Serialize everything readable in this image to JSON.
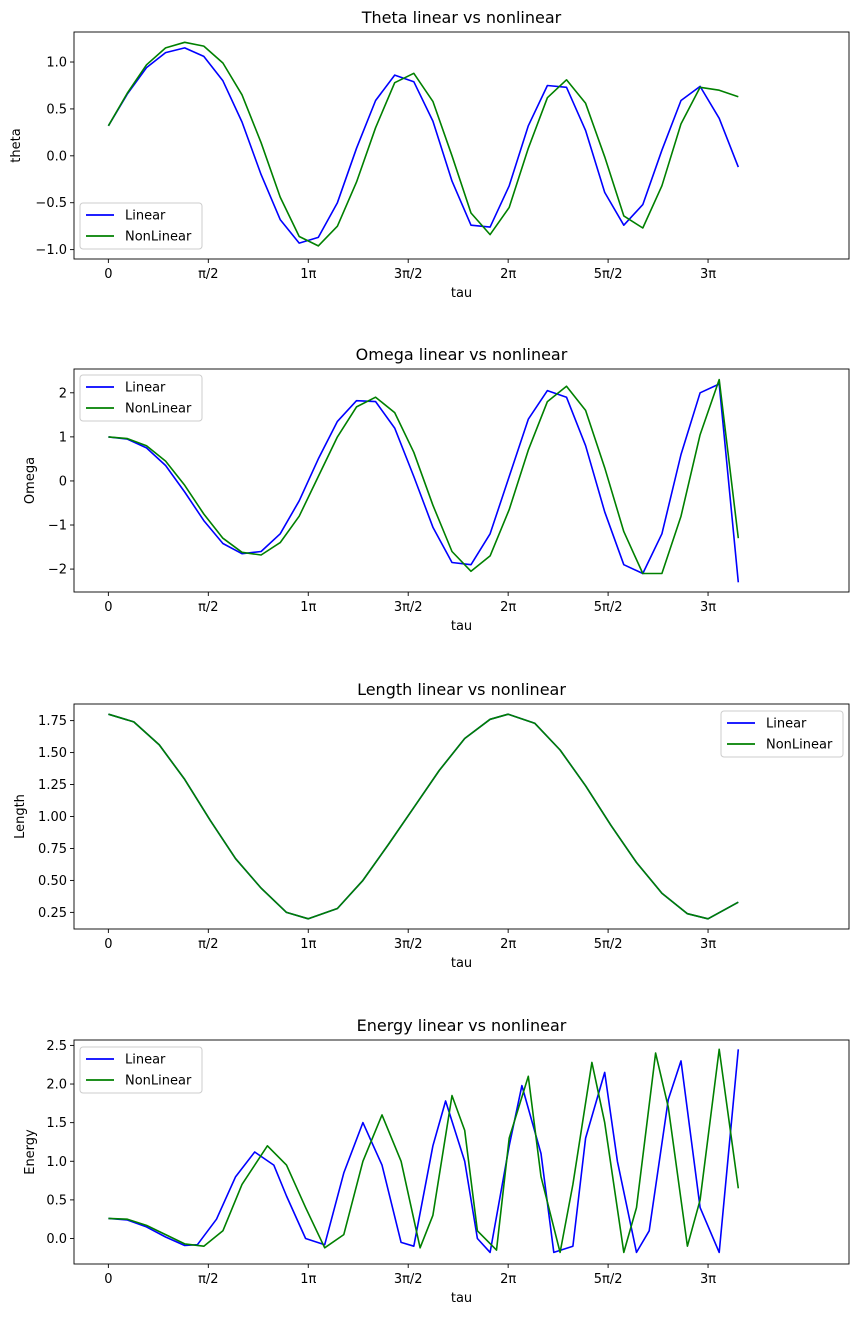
{
  "colors": {
    "linear": "#0000ff",
    "nonlinear": "#008000"
  },
  "chart_data": [
    {
      "type": "line",
      "title": "Theta linear vs nonlinear",
      "xlabel": "tau",
      "ylabel": "theta",
      "xlim": [
        -0.54,
        11.64
      ],
      "ylim": [
        -1.1,
        1.32
      ],
      "xticks": [
        0,
        1.5708,
        3.1416,
        4.7124,
        6.2832,
        7.854,
        9.4248
      ],
      "xticklabels": [
        "0",
        "π/2",
        "1π",
        "3π/2",
        "2π",
        "5π/2",
        "3π"
      ],
      "yticks": [
        -1.0,
        -0.5,
        0.0,
        0.5,
        1.0
      ],
      "yticklabels": [
        "−1.0",
        "−0.5",
        "0.0",
        "0.5",
        "1.0"
      ],
      "legend": "lower-left",
      "grid": false,
      "series": [
        {
          "name": "Linear",
          "color": "#0000ff",
          "x": [
            0,
            0.3,
            0.6,
            0.9,
            1.2,
            1.5,
            1.8,
            2.1,
            2.4,
            2.7,
            3.0,
            3.3,
            3.6,
            3.9,
            4.2,
            4.5,
            4.8,
            5.1,
            5.4,
            5.7,
            6.0,
            6.3,
            6.6,
            6.9,
            7.2,
            7.5,
            7.8,
            8.1,
            8.4,
            8.7,
            9.0,
            9.3,
            9.6,
            9.9
          ],
          "y": [
            0.32,
            0.66,
            0.94,
            1.1,
            1.15,
            1.06,
            0.8,
            0.36,
            -0.2,
            -0.68,
            -0.93,
            -0.87,
            -0.5,
            0.08,
            0.59,
            0.86,
            0.79,
            0.37,
            -0.27,
            -0.74,
            -0.76,
            -0.32,
            0.32,
            0.75,
            0.73,
            0.27,
            -0.39,
            -0.74,
            -0.52,
            0.06,
            0.59,
            0.74,
            0.4,
            -0.12
          ]
        },
        {
          "name": "NonLinear",
          "color": "#008000",
          "x": [
            0,
            0.3,
            0.6,
            0.9,
            1.2,
            1.5,
            1.8,
            2.1,
            2.4,
            2.7,
            3.0,
            3.3,
            3.6,
            3.9,
            4.2,
            4.5,
            4.8,
            5.1,
            5.4,
            5.7,
            6.0,
            6.3,
            6.6,
            6.9,
            7.2,
            7.5,
            7.8,
            8.1,
            8.4,
            8.7,
            9.0,
            9.3,
            9.6,
            9.9
          ],
          "y": [
            0.32,
            0.67,
            0.97,
            1.15,
            1.21,
            1.17,
            0.99,
            0.65,
            0.14,
            -0.44,
            -0.86,
            -0.96,
            -0.75,
            -0.28,
            0.3,
            0.78,
            0.88,
            0.58,
            0.0,
            -0.61,
            -0.84,
            -0.55,
            0.08,
            0.62,
            0.81,
            0.56,
            -0.01,
            -0.64,
            -0.77,
            -0.32,
            0.34,
            0.73,
            0.7,
            0.63
          ]
        }
      ]
    },
    {
      "type": "line",
      "title": "Omega linear vs nonlinear",
      "xlabel": "tau",
      "ylabel": "Omega",
      "xlim": [
        -0.54,
        11.64
      ],
      "ylim": [
        -2.52,
        2.54
      ],
      "xticks": [
        0,
        1.5708,
        3.1416,
        4.7124,
        6.2832,
        7.854,
        9.4248
      ],
      "xticklabels": [
        "0",
        "π/2",
        "1π",
        "3π/2",
        "2π",
        "5π/2",
        "3π"
      ],
      "yticks": [
        -2,
        -1,
        0,
        1,
        2
      ],
      "yticklabels": [
        "−2",
        "−1",
        "0",
        "1",
        "2"
      ],
      "legend": "upper-left",
      "grid": false,
      "series": [
        {
          "name": "Linear",
          "color": "#0000ff",
          "x": [
            0,
            0.3,
            0.6,
            0.9,
            1.2,
            1.5,
            1.8,
            2.1,
            2.4,
            2.7,
            3.0,
            3.3,
            3.6,
            3.9,
            4.2,
            4.5,
            4.8,
            5.1,
            5.4,
            5.7,
            6.0,
            6.3,
            6.6,
            6.9,
            7.2,
            7.5,
            7.8,
            8.1,
            8.4,
            8.7,
            9.0,
            9.3,
            9.6,
            9.9
          ],
          "y": [
            1.0,
            0.95,
            0.75,
            0.35,
            -0.25,
            -0.9,
            -1.42,
            -1.65,
            -1.6,
            -1.2,
            -0.45,
            0.5,
            1.35,
            1.82,
            1.8,
            1.2,
            0.1,
            -1.05,
            -1.85,
            -1.9,
            -1.2,
            0.1,
            1.4,
            2.05,
            1.9,
            0.8,
            -0.7,
            -1.9,
            -2.1,
            -1.2,
            0.6,
            2.0,
            2.2,
            -2.3
          ]
        },
        {
          "name": "NonLinear",
          "color": "#008000",
          "x": [
            0,
            0.3,
            0.6,
            0.9,
            1.2,
            1.5,
            1.8,
            2.1,
            2.4,
            2.7,
            3.0,
            3.3,
            3.6,
            3.9,
            4.2,
            4.5,
            4.8,
            5.1,
            5.4,
            5.7,
            6.0,
            6.3,
            6.6,
            6.9,
            7.2,
            7.5,
            7.8,
            8.1,
            8.4,
            8.7,
            9.0,
            9.3,
            9.6,
            9.9
          ],
          "y": [
            1.0,
            0.96,
            0.8,
            0.45,
            -0.1,
            -0.75,
            -1.3,
            -1.62,
            -1.68,
            -1.4,
            -0.8,
            0.1,
            1.0,
            1.68,
            1.9,
            1.55,
            0.65,
            -0.55,
            -1.6,
            -2.05,
            -1.7,
            -0.65,
            0.7,
            1.8,
            2.15,
            1.6,
            0.3,
            -1.15,
            -2.1,
            -2.1,
            -0.8,
            1.05,
            2.3,
            -1.3
          ]
        }
      ]
    },
    {
      "type": "line",
      "title": "Length linear vs nonlinear",
      "xlabel": "tau",
      "ylabel": "Length",
      "xlim": [
        -0.54,
        11.64
      ],
      "ylim": [
        0.12,
        1.88
      ],
      "xticks": [
        0,
        1.5708,
        3.1416,
        4.7124,
        6.2832,
        7.854,
        9.4248
      ],
      "xticklabels": [
        "0",
        "π/2",
        "1π",
        "3π/2",
        "2π",
        "5π/2",
        "3π"
      ],
      "yticks": [
        0.25,
        0.5,
        0.75,
        1.0,
        1.25,
        1.5,
        1.75
      ],
      "yticklabels": [
        "0.25",
        "0.50",
        "0.75",
        "1.00",
        "1.25",
        "1.50",
        "1.75"
      ],
      "legend": "upper-right",
      "grid": false,
      "series": [
        {
          "name": "Linear",
          "color": "#0000ff",
          "x": [
            0,
            0.4,
            0.8,
            1.2,
            1.6,
            2.0,
            2.4,
            2.8,
            3.1416,
            3.6,
            4.0,
            4.4,
            4.8,
            5.2,
            5.6,
            6.0,
            6.2832,
            6.7,
            7.1,
            7.5,
            7.9,
            8.3,
            8.7,
            9.1,
            9.4248,
            9.9
          ],
          "y": [
            1.8,
            1.74,
            1.56,
            1.29,
            0.97,
            0.67,
            0.44,
            0.25,
            0.2,
            0.28,
            0.5,
            0.78,
            1.07,
            1.36,
            1.61,
            1.76,
            1.8,
            1.73,
            1.52,
            1.24,
            0.93,
            0.64,
            0.4,
            0.24,
            0.2,
            0.33
          ]
        },
        {
          "name": "NonLinear",
          "color": "#008000",
          "x": [
            0,
            0.4,
            0.8,
            1.2,
            1.6,
            2.0,
            2.4,
            2.8,
            3.1416,
            3.6,
            4.0,
            4.4,
            4.8,
            5.2,
            5.6,
            6.0,
            6.2832,
            6.7,
            7.1,
            7.5,
            7.9,
            8.3,
            8.7,
            9.1,
            9.4248,
            9.9
          ],
          "y": [
            1.8,
            1.74,
            1.56,
            1.29,
            0.97,
            0.67,
            0.44,
            0.25,
            0.2,
            0.28,
            0.5,
            0.78,
            1.07,
            1.36,
            1.61,
            1.76,
            1.8,
            1.73,
            1.52,
            1.24,
            0.93,
            0.64,
            0.4,
            0.24,
            0.2,
            0.33
          ]
        }
      ]
    },
    {
      "type": "line",
      "title": "Energy linear vs nonlinear",
      "xlabel": "tau",
      "ylabel": "Energy",
      "xlim": [
        -0.54,
        11.64
      ],
      "ylim": [
        -0.33,
        2.57
      ],
      "xticks": [
        0,
        1.5708,
        3.1416,
        4.7124,
        6.2832,
        7.854,
        9.4248
      ],
      "xticklabels": [
        "0",
        "π/2",
        "1π",
        "3π/2",
        "2π",
        "5π/2",
        "3π"
      ],
      "yticks": [
        0.0,
        0.5,
        1.0,
        1.5,
        2.0,
        2.5
      ],
      "yticklabels": [
        "0.0",
        "0.5",
        "1.0",
        "1.5",
        "2.0",
        "2.5"
      ],
      "legend": "upper-left",
      "grid": false,
      "series": [
        {
          "name": "Linear",
          "color": "#0000ff",
          "x": [
            0,
            0.3,
            0.6,
            0.9,
            1.2,
            1.4,
            1.7,
            2.0,
            2.3,
            2.6,
            2.8,
            3.1,
            3.4,
            3.7,
            4.0,
            4.3,
            4.6,
            4.8,
            5.1,
            5.3,
            5.6,
            5.8,
            6.0,
            6.3,
            6.5,
            6.8,
            7.0,
            7.3,
            7.5,
            7.8,
            8.0,
            8.3,
            8.5,
            8.8,
            9.0,
            9.3,
            9.6,
            9.9
          ],
          "y": [
            0.26,
            0.24,
            0.15,
            0.02,
            -0.09,
            -0.08,
            0.25,
            0.8,
            1.12,
            0.95,
            0.55,
            0.0,
            -0.08,
            0.85,
            1.5,
            0.95,
            -0.05,
            -0.1,
            1.2,
            1.78,
            1.0,
            0.0,
            -0.18,
            1.2,
            1.98,
            1.1,
            -0.18,
            -0.1,
            1.3,
            2.15,
            1.0,
            -0.18,
            0.1,
            1.8,
            2.3,
            0.4,
            -0.18,
            2.45
          ]
        },
        {
          "name": "NonLinear",
          "color": "#008000",
          "x": [
            0,
            0.3,
            0.6,
            0.9,
            1.2,
            1.5,
            1.8,
            2.1,
            2.5,
            2.8,
            3.1,
            3.4,
            3.7,
            4.0,
            4.3,
            4.6,
            4.9,
            5.1,
            5.4,
            5.6,
            5.8,
            6.1,
            6.3,
            6.6,
            6.8,
            7.1,
            7.3,
            7.6,
            7.8,
            8.1,
            8.3,
            8.6,
            8.8,
            9.1,
            9.3,
            9.6,
            9.9
          ],
          "y": [
            0.26,
            0.25,
            0.17,
            0.05,
            -0.07,
            -0.1,
            0.1,
            0.7,
            1.2,
            0.95,
            0.4,
            -0.12,
            0.05,
            1.0,
            1.6,
            1.0,
            -0.12,
            0.3,
            1.85,
            1.4,
            0.1,
            -0.15,
            1.3,
            2.1,
            0.8,
            -0.18,
            0.7,
            2.28,
            1.5,
            -0.18,
            0.4,
            2.4,
            1.7,
            -0.1,
            0.5,
            2.45,
            0.65
          ]
        }
      ]
    }
  ]
}
